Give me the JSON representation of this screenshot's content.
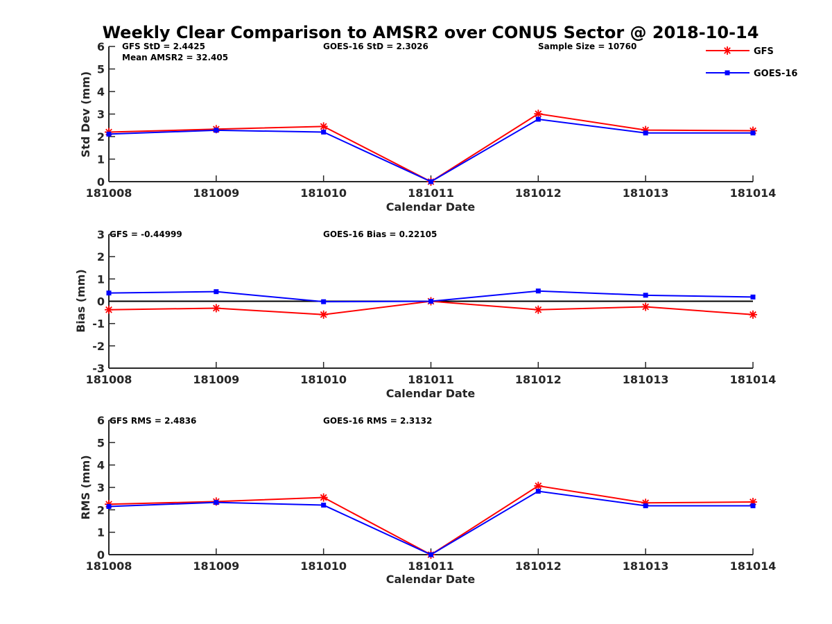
{
  "chart_data": {
    "title": "Weekly Clear Comparison to AMSR2 over CONUS Sector @ 2018-10-14",
    "legend": {
      "placement": "top-right",
      "entries": [
        {
          "name": "GFS",
          "color": "#ff0000",
          "marker": "asterisk"
        },
        {
          "name": "GOES-16",
          "color": "#0000ff",
          "marker": "square"
        }
      ]
    },
    "panels": [
      {
        "type": "line",
        "xlabel": "Calendar Date",
        "ylabel": "Std Dev (mm)",
        "categories": [
          "181008",
          "181009",
          "181010",
          "181011",
          "181012",
          "181013",
          "181014"
        ],
        "ylim": [
          0,
          6
        ],
        "yticks": [
          "0",
          "1",
          "2",
          "3",
          "4",
          "5",
          "6"
        ],
        "zero_line": false,
        "annotations": {
          "left": "GFS StD = 2.4425",
          "left2": "Mean AMSR2 = 32.405",
          "middle": "GOES-16 StD = 2.3026",
          "right": "Sample Size = 10760"
        },
        "series": [
          {
            "name": "GFS",
            "values": [
              2.2,
              2.33,
              2.45,
              0.0,
              3.01,
              2.29,
              2.26
            ]
          },
          {
            "name": "GOES-16",
            "values": [
              2.11,
              2.28,
              2.2,
              0.0,
              2.77,
              2.16,
              2.16
            ]
          }
        ]
      },
      {
        "type": "line",
        "xlabel": "Calendar Date",
        "ylabel": "Bias (mm)",
        "categories": [
          "181008",
          "181009",
          "181010",
          "181011",
          "181012",
          "181013",
          "181014"
        ],
        "ylim": [
          -3,
          3
        ],
        "yticks": [
          "-3",
          "-2",
          "-1",
          "0",
          "1",
          "2",
          "3"
        ],
        "zero_line": true,
        "annotations": {
          "left": "GFS = -0.44999",
          "middle": "GOES-16 Bias  = 0.22105"
        },
        "series": [
          {
            "name": "GFS",
            "values": [
              -0.38,
              -0.31,
              -0.6,
              0.0,
              -0.38,
              -0.25,
              -0.6
            ]
          },
          {
            "name": "GOES-16",
            "values": [
              0.37,
              0.43,
              -0.02,
              0.0,
              0.46,
              0.27,
              0.19
            ]
          }
        ]
      },
      {
        "type": "line",
        "xlabel": "Calendar Date",
        "ylabel": "RMS (mm)",
        "categories": [
          "181008",
          "181009",
          "181010",
          "181011",
          "181012",
          "181013",
          "181014"
        ],
        "ylim": [
          0,
          6
        ],
        "yticks": [
          "0",
          "1",
          "2",
          "3",
          "4",
          "5",
          "6"
        ],
        "zero_line": false,
        "annotations": {
          "left": "GFS RMS = 2.4836",
          "middle": "GOES-16 RMS = 2.3132"
        },
        "series": [
          {
            "name": "GFS",
            "values": [
              2.25,
              2.37,
              2.55,
              0.0,
              3.07,
              2.31,
              2.35
            ]
          },
          {
            "name": "GOES-16",
            "values": [
              2.15,
              2.33,
              2.21,
              0.0,
              2.83,
              2.18,
              2.18
            ]
          }
        ]
      }
    ]
  }
}
